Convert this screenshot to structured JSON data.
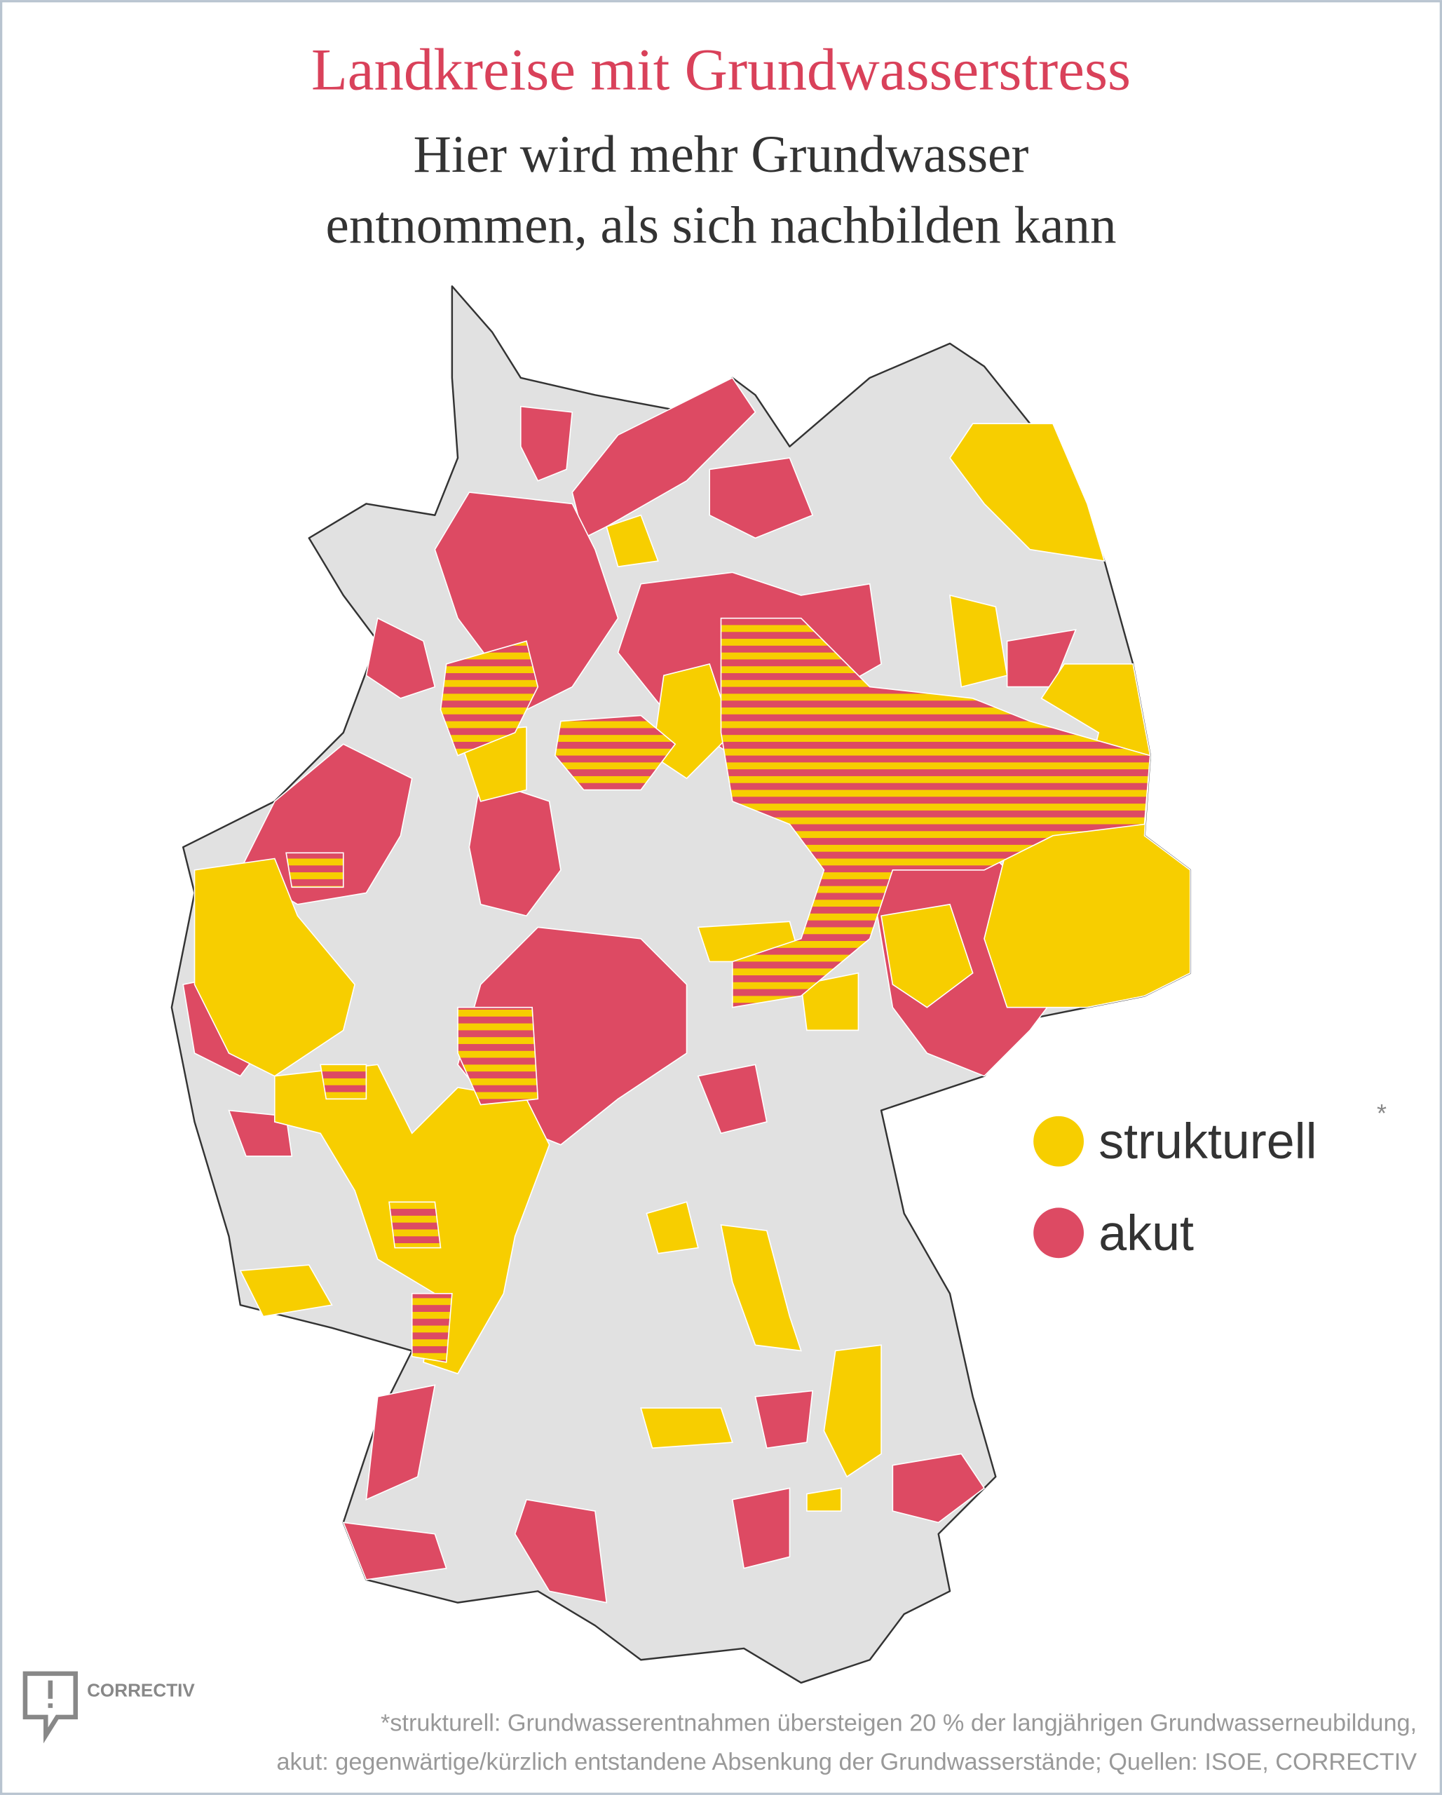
{
  "header": {
    "title": "Landkreise mit Grundwasserstress",
    "subtitle": [
      "Hier wird mehr Grundwasser",
      "entnommen, als sich nachbilden kann"
    ]
  },
  "legend": {
    "items": [
      {
        "label": "strukturell",
        "marker": "*",
        "color": "#f7ce00"
      },
      {
        "label": "akut",
        "color": "#dd4a63"
      }
    ]
  },
  "footer": {
    "logo": "CORRECTIV",
    "notes": [
      "*strukturell: Grundwasserentnahmen übersteigen 20 % der langjährigen Grundwasserneubildung,",
      "akut: gegenwärtige/kürzlich entstandene Absenkung der Grundwasserstände; Quellen: ISOE, CORRECTIV"
    ]
  }
}
